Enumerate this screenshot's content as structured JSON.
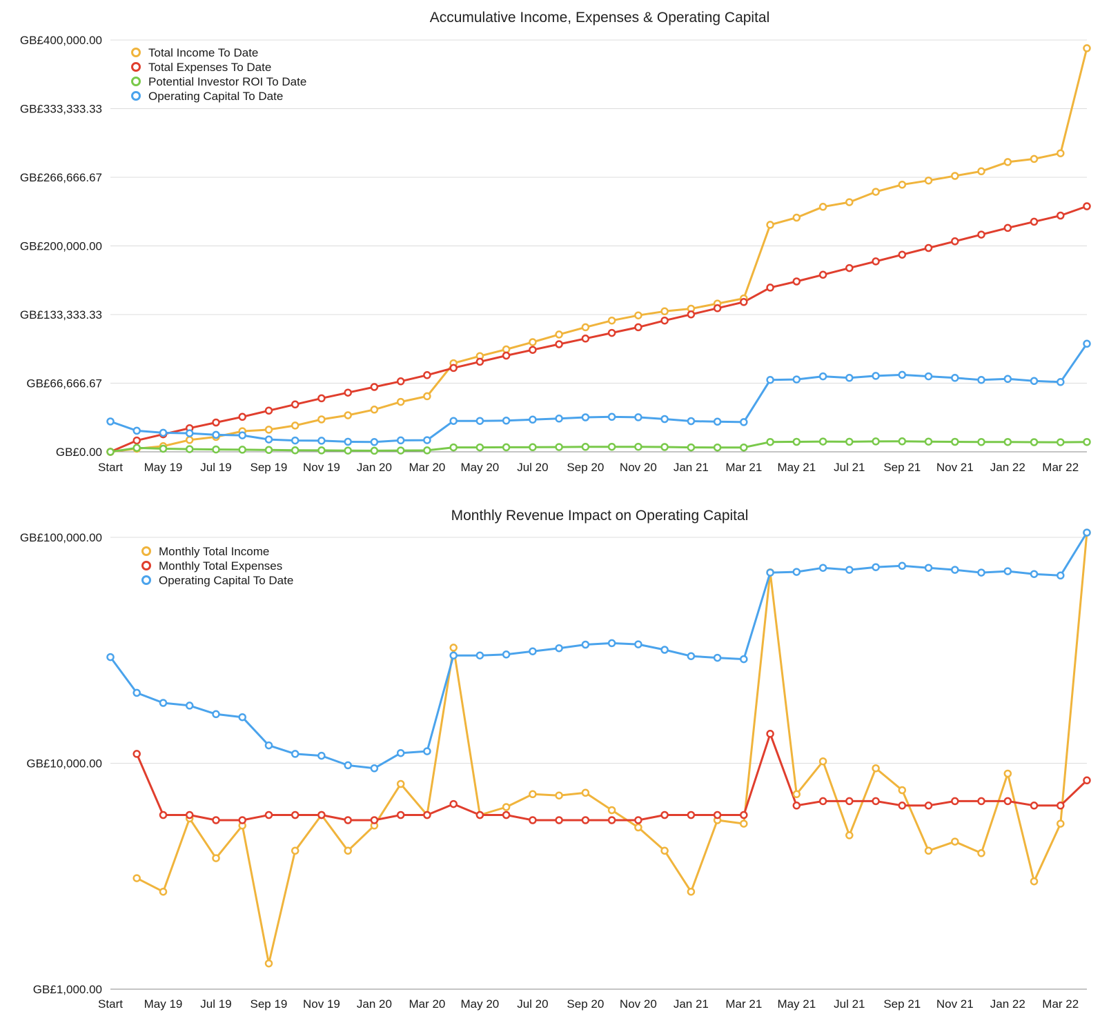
{
  "chart_data": [
    {
      "type": "line",
      "title": "Accumulative Income, Expenses & Operating Capital",
      "xlabel": "",
      "ylabel": "",
      "scale": "linear",
      "ylim": [
        0,
        400000
      ],
      "yticks": [
        "GB£0.00",
        "GB£66,666.67",
        "GB£133,333.33",
        "GB£200,000.00",
        "GB£266,666.67",
        "GB£333,333.33",
        "GB£400,000.00"
      ],
      "x": [
        "Start",
        "Apr 19",
        "May 19",
        "Jun 19",
        "Jul 19",
        "Aug 19",
        "Sep 19",
        "Oct 19",
        "Nov 19",
        "Dec 19",
        "Jan 20",
        "Feb 20",
        "Mar 20",
        "Apr 20",
        "May 20",
        "Jun 20",
        "Jul 20",
        "Aug 20",
        "Sep 20",
        "Oct 20",
        "Nov 20",
        "Dec 20",
        "Jan 21",
        "Feb 21",
        "Mar 21",
        "Apr 21",
        "May 21",
        "Jun 21",
        "Jul 21",
        "Aug 21",
        "Sep 21",
        "Oct 21",
        "Nov 21",
        "Dec 21",
        "Jan 22",
        "Feb 22",
        "Mar 22",
        "Apr 22"
      ],
      "xtick_labels": [
        "Start",
        "May 19",
        "Jul 19",
        "Sep 19",
        "Nov 19",
        "Jan 20",
        "Mar 20",
        "May 20",
        "Jul 20",
        "Sep 20",
        "Nov 20",
        "Jan 21",
        "Mar 21",
        "May 21",
        "Jul 21",
        "Sep 21",
        "Nov 21",
        "Jan 22",
        "Mar 22"
      ],
      "grid": true,
      "legend": "top-left",
      "series": [
        {
          "name": "Total Income To Date",
          "color": "#F0B43C",
          "values": [
            0,
            3000,
            5500,
            11500,
            14500,
            20000,
            21500,
            25500,
            31500,
            35500,
            41000,
            48500,
            54000,
            86000,
            93000,
            99500,
            106500,
            114000,
            121000,
            127500,
            132500,
            136500,
            139000,
            144000,
            149000,
            220500,
            227500,
            238000,
            242500,
            252500,
            259500,
            263500,
            268000,
            272500,
            281500,
            284500,
            290000,
            392000
          ]
        },
        {
          "name": "Total Expenses To Date",
          "color": "#E03E2D",
          "values": [
            0,
            11000,
            17000,
            23000,
            28500,
            34000,
            40000,
            46000,
            52000,
            57500,
            63000,
            68500,
            74500,
            81500,
            87500,
            93500,
            99000,
            104500,
            110000,
            115500,
            121000,
            127500,
            133500,
            139500,
            145500,
            159500,
            165500,
            172000,
            178500,
            185000,
            191500,
            198000,
            204500,
            211000,
            217500,
            223500,
            229500,
            238500
          ]
        },
        {
          "name": "Potential Investor ROI To Date",
          "color": "#79C94A",
          "values": [
            0,
            3800,
            3000,
            2600,
            2300,
            2100,
            1800,
            1500,
            1400,
            1200,
            1100,
            1300,
            1400,
            4300,
            4300,
            4400,
            4500,
            4600,
            4800,
            4900,
            4900,
            4700,
            4300,
            4200,
            4200,
            9600,
            9700,
            10000,
            9800,
            10100,
            10200,
            9900,
            9700,
            9500,
            9600,
            9400,
            9300,
            9600
          ]
        },
        {
          "name": "Operating Capital To Date",
          "color": "#4AA3EC",
          "values": [
            29500,
            20500,
            18500,
            18000,
            16500,
            16000,
            12000,
            11000,
            10800,
            9800,
            9500,
            11100,
            11300,
            30000,
            30000,
            30300,
            31300,
            32300,
            33500,
            34000,
            33600,
            31800,
            29800,
            29300,
            28900,
            69800,
            70300,
            73300,
            71800,
            73800,
            74800,
            73300,
            71800,
            69800,
            70800,
            68800,
            67800,
            105000
          ]
        }
      ]
    },
    {
      "type": "line",
      "title": "Monthly Revenue Impact on Operating Capital",
      "xlabel": "",
      "ylabel": "",
      "scale": "log",
      "ylim": [
        1000,
        100000
      ],
      "yticks": [
        "GB£1,000.00",
        "GB£10,000.00",
        "GB£100,000.00"
      ],
      "x": [
        "Start",
        "Apr 19",
        "May 19",
        "Jun 19",
        "Jul 19",
        "Aug 19",
        "Sep 19",
        "Oct 19",
        "Nov 19",
        "Dec 19",
        "Jan 20",
        "Feb 20",
        "Mar 20",
        "Apr 20",
        "May 20",
        "Jun 20",
        "Jul 20",
        "Aug 20",
        "Sep 20",
        "Oct 20",
        "Nov 20",
        "Dec 20",
        "Jan 21",
        "Feb 21",
        "Mar 21",
        "Apr 21",
        "May 21",
        "Jun 21",
        "Jul 21",
        "Aug 21",
        "Sep 21",
        "Oct 21",
        "Nov 21",
        "Dec 21",
        "Jan 22",
        "Feb 22",
        "Mar 22",
        "Apr 22"
      ],
      "xtick_labels": [
        "Start",
        "May 19",
        "Jul 19",
        "Sep 19",
        "Nov 19",
        "Jan 20",
        "Mar 20",
        "May 20",
        "Jul 20",
        "Sep 20",
        "Nov 20",
        "Jan 21",
        "Mar 21",
        "May 21",
        "Jul 21",
        "Sep 21",
        "Nov 21",
        "Jan 22",
        "Mar 22"
      ],
      "grid": true,
      "legend": "top-left",
      "series": [
        {
          "name": "Monthly Total Income",
          "color": "#F0B43C",
          "values": [
            null,
            3100,
            2700,
            5700,
            3800,
            5300,
            1300,
            4100,
            5900,
            4100,
            5300,
            8100,
            5900,
            32500,
            5900,
            6400,
            7300,
            7200,
            7400,
            6200,
            5200,
            4100,
            2700,
            5600,
            5400,
            70000,
            7300,
            10200,
            4800,
            9500,
            7600,
            4100,
            4500,
            4000,
            9000,
            3000,
            5400,
            105000
          ]
        },
        {
          "name": "Monthly Total Expenses",
          "color": "#E03E2D",
          "values": [
            null,
            11000,
            5900,
            5900,
            5600,
            5600,
            5900,
            5900,
            5900,
            5600,
            5600,
            5900,
            5900,
            6600,
            5900,
            5900,
            5600,
            5600,
            5600,
            5600,
            5600,
            5900,
            5900,
            5900,
            5900,
            13500,
            6500,
            6800,
            6800,
            6800,
            6500,
            6500,
            6800,
            6800,
            6800,
            6500,
            6500,
            8400
          ]
        },
        {
          "name": "Operating Capital To Date",
          "color": "#4AA3EC",
          "values": [
            29500,
            20500,
            18500,
            18000,
            16500,
            16000,
            12000,
            11000,
            10800,
            9800,
            9500,
            11100,
            11300,
            30000,
            30000,
            30300,
            31300,
            32300,
            33500,
            34000,
            33600,
            31800,
            29800,
            29300,
            28900,
            69800,
            70300,
            73300,
            71800,
            73800,
            74800,
            73300,
            71800,
            69800,
            70800,
            68800,
            67800,
            105000
          ]
        }
      ]
    }
  ]
}
